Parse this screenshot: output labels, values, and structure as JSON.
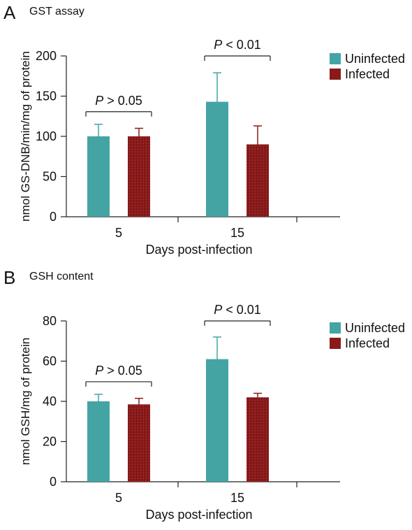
{
  "colors": {
    "uninfected": "#44a4a4",
    "infected": "#8a1a1a"
  },
  "panels": [
    {
      "letter": "A",
      "title": "GST assay",
      "chart_data": {
        "type": "bar",
        "categories": [
          "5",
          "15"
        ],
        "series": [
          {
            "name": "Uninfected",
            "values": [
              100,
              143
            ],
            "errors": [
              15,
              36
            ]
          },
          {
            "name": "Infected",
            "values": [
              100,
              90
            ],
            "errors": [
              10,
              23
            ]
          }
        ],
        "ylabel": "nmol GS-DNB/min/mg of protein",
        "xlabel": "Days post-infection",
        "ylim": [
          0,
          200
        ],
        "yticks": [
          "0",
          "50",
          "100",
          "150",
          "200"
        ],
        "legend_position": "top-right",
        "annotations": [
          {
            "italic": "P",
            "text": " > 0.05"
          },
          {
            "italic": "P",
            "text": " < 0.01"
          }
        ]
      }
    },
    {
      "letter": "B",
      "title": "GSH content",
      "chart_data": {
        "type": "bar",
        "categories": [
          "5",
          "15"
        ],
        "series": [
          {
            "name": "Uninfected",
            "values": [
              40,
              61
            ],
            "errors": [
              3.5,
              11
            ]
          },
          {
            "name": "Infected",
            "values": [
              38.5,
              42
            ],
            "errors": [
              3,
              2
            ]
          }
        ],
        "ylabel": "nmol GSH/mg of protein",
        "xlabel": "Days post-infection",
        "ylim": [
          0,
          80
        ],
        "yticks": [
          "0",
          "20",
          "40",
          "60",
          "80"
        ],
        "legend_position": "top-right",
        "annotations": [
          {
            "italic": "P",
            "text": " > 0.05"
          },
          {
            "italic": "P",
            "text": " < 0.01"
          }
        ]
      }
    }
  ]
}
